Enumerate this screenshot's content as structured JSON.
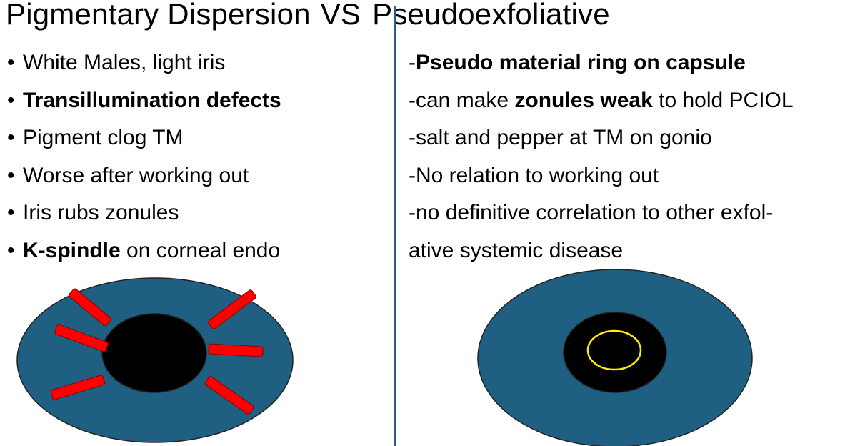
{
  "title": {
    "left": "Pigmentary Dispersion",
    "vs": "VS",
    "right": "Pseudoexfoliative"
  },
  "pigmentary": {
    "items": [
      {
        "bold": "",
        "text": "White Males, light iris"
      },
      {
        "bold": "Transillumination defects",
        "text": ""
      },
      {
        "bold": "",
        "text": "Pigment clog TM"
      },
      {
        "bold": "",
        "text": "Worse after working out"
      },
      {
        "bold": "",
        "text": "Iris rubs zonules"
      },
      {
        "bold": "K-spindle",
        "text": " on corneal endo"
      }
    ]
  },
  "pseudoexfoliative": {
    "items": [
      {
        "pre": "-",
        "bold": "Pseudo material ring on capsule",
        "post": ""
      },
      {
        "pre": "-can make ",
        "bold": "zonules weak",
        "post": " to hold PCIOL"
      },
      {
        "pre": "-salt and pepper at TM on gonio",
        "bold": "",
        "post": ""
      },
      {
        "pre": "-No relation to working out",
        "bold": "",
        "post": ""
      },
      {
        "pre": "-no definitive correlation to other exfol-",
        "bold": "",
        "post": ""
      },
      {
        "pre": "ative systemic disease",
        "bold": "",
        "post": ""
      }
    ]
  },
  "colors": {
    "iris": "#1f5f82",
    "pupil": "#000000",
    "defects": "#ff0000",
    "ring": "#ffee00",
    "divider": "#2e5d84"
  }
}
